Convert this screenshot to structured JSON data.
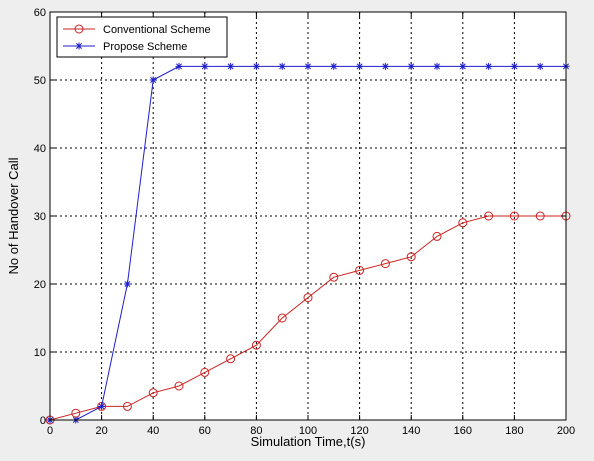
{
  "chart_data": {
    "type": "line",
    "title": "",
    "xlabel": "Simulation Time,t(s)",
    "ylabel": "No of Handover Call",
    "xlim": [
      0,
      200
    ],
    "ylim": [
      0,
      60
    ],
    "xticks": [
      0,
      20,
      40,
      60,
      80,
      100,
      120,
      140,
      160,
      180,
      200
    ],
    "yticks": [
      0,
      10,
      20,
      30,
      40,
      50,
      60
    ],
    "grid": true,
    "legend_position": "top-left",
    "x": [
      0,
      10,
      20,
      30,
      40,
      50,
      60,
      70,
      80,
      90,
      100,
      110,
      120,
      130,
      140,
      150,
      160,
      170,
      180,
      190,
      200
    ],
    "series": [
      {
        "name": "Conventional Scheme",
        "color": "#cc2222",
        "marker": "circle",
        "values": [
          0,
          1,
          2,
          2,
          4,
          5,
          7,
          9,
          11,
          15,
          18,
          21,
          22,
          23,
          24,
          27,
          29,
          30,
          30,
          30,
          30
        ]
      },
      {
        "name": "Propose Scheme",
        "color": "#1f1fcc",
        "marker": "star",
        "values": [
          0,
          0,
          2,
          20,
          50,
          52,
          52,
          52,
          52,
          52,
          52,
          52,
          52,
          52,
          52,
          52,
          52,
          52,
          52,
          52,
          52
        ]
      }
    ]
  }
}
